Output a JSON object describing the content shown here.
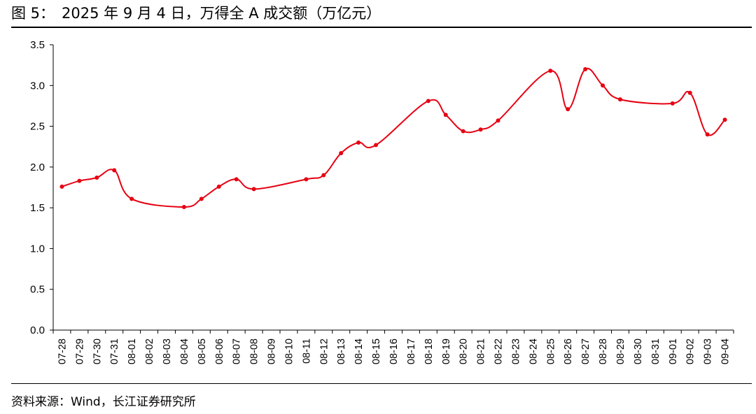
{
  "figure": {
    "label": "图 5：",
    "title": "2025 年 9 月 4 日，万得全 A 成交额（万亿元）",
    "source": "资料来源：Wind，长江证券研究所"
  },
  "chart_data": {
    "type": "line",
    "title": "2025 年 9 月 4 日，万得全 A 成交额（万亿元）",
    "xlabel": "",
    "ylabel": "",
    "ylim": [
      0,
      3.5
    ],
    "y_ticks": [
      "0.0",
      "0.5",
      "1.0",
      "1.5",
      "2.0",
      "2.5",
      "3.0",
      "3.5"
    ],
    "grid": false,
    "legend": "none",
    "categories": [
      "07-28",
      "07-29",
      "07-30",
      "07-31",
      "08-01",
      "08-02",
      "08-03",
      "08-04",
      "08-05",
      "08-06",
      "08-07",
      "08-08",
      "08-09",
      "08-10",
      "08-11",
      "08-12",
      "08-13",
      "08-14",
      "08-15",
      "08-16",
      "08-17",
      "08-18",
      "08-19",
      "08-20",
      "08-21",
      "08-22",
      "08-23",
      "08-24",
      "08-25",
      "08-26",
      "08-27",
      "08-28",
      "08-29",
      "08-30",
      "08-31",
      "09-01",
      "09-02",
      "09-03",
      "09-04"
    ],
    "series": [
      {
        "color": "#e60012",
        "points": [
          {
            "x": "07-28",
            "y": 1.76
          },
          {
            "x": "07-29",
            "y": 1.83
          },
          {
            "x": "07-30",
            "y": 1.87
          },
          {
            "x": "07-31",
            "y": 1.96
          },
          {
            "x": "08-01",
            "y": 1.61
          },
          {
            "x": "08-04",
            "y": 1.51
          },
          {
            "x": "08-05",
            "y": 1.61
          },
          {
            "x": "08-06",
            "y": 1.76
          },
          {
            "x": "08-07",
            "y": 1.85
          },
          {
            "x": "08-08",
            "y": 1.73
          },
          {
            "x": "08-11",
            "y": 1.85
          },
          {
            "x": "08-12",
            "y": 1.9
          },
          {
            "x": "08-13",
            "y": 2.17
          },
          {
            "x": "08-14",
            "y": 2.3
          },
          {
            "x": "08-15",
            "y": 2.27
          },
          {
            "x": "08-18",
            "y": 2.81
          },
          {
            "x": "08-19",
            "y": 2.64
          },
          {
            "x": "08-20",
            "y": 2.44
          },
          {
            "x": "08-21",
            "y": 2.46
          },
          {
            "x": "08-22",
            "y": 2.57
          },
          {
            "x": "08-25",
            "y": 3.18
          },
          {
            "x": "08-26",
            "y": 2.71
          },
          {
            "x": "08-27",
            "y": 3.2
          },
          {
            "x": "08-28",
            "y": 3.0
          },
          {
            "x": "08-29",
            "y": 2.83
          },
          {
            "x": "09-01",
            "y": 2.78
          },
          {
            "x": "09-02",
            "y": 2.91
          },
          {
            "x": "09-03",
            "y": 2.4
          },
          {
            "x": "09-04",
            "y": 2.58
          }
        ]
      }
    ]
  }
}
